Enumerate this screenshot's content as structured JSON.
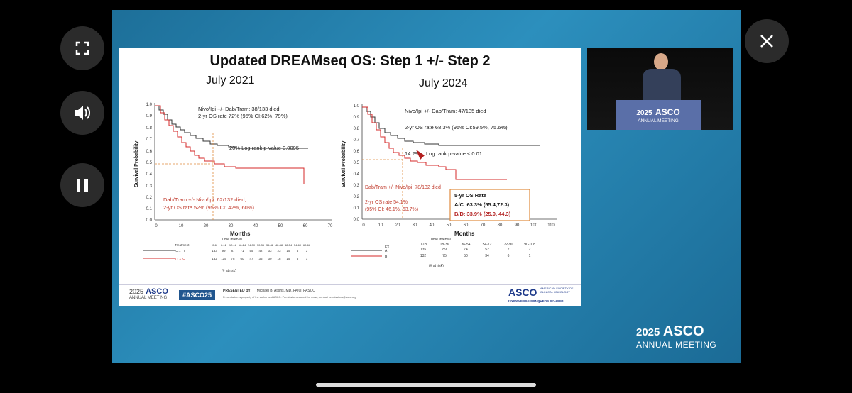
{
  "slide": {
    "title": "Updated DREAMseq OS: Step 1 +/- Step 2",
    "left_subtitle": "July 2021",
    "right_subtitle": "July 2024",
    "left_annot_black_1": "Nivo/Ipi +/- Dab/Tram: 38/133 died,",
    "left_annot_black_2": "2-yr OS rate 72% (95% CI:62%, 79%)",
    "left_logrank": "20% Log rank p-value 0.0095",
    "left_annot_red_1": "Dab/Tram +/- Nivo/Ipi: 62/132 died,",
    "left_annot_red_2": "2-yr OS rate 52% (95% CI: 42%, 60%)",
    "y_axis_label": "Survival Probability",
    "x_axis_label": "Months",
    "time_interval": "Time Interval",
    "at_risk": "(# at risk)",
    "left_treatment_header": "Treatment",
    "left_intervals": [
      "0-6",
      "6-12",
      "12-18",
      "18-24",
      "24-30",
      "30-36",
      "36-42",
      "42-48",
      "48-54",
      "54-60",
      "60-66"
    ],
    "left_row_black_label": "IO→TT",
    "left_row_black": [
      "133",
      "99",
      "87",
      "71",
      "55",
      "42",
      "33",
      "23",
      "15",
      "6",
      "3"
    ],
    "left_row_red_label": "TT→IO",
    "left_row_red": [
      "132",
      "115",
      "78",
      "60",
      "47",
      "35",
      "30",
      "18",
      "15",
      "6",
      "1"
    ],
    "left_x_ticks": [
      "0",
      "10",
      "20",
      "30",
      "40",
      "50",
      "60",
      "70"
    ],
    "y_ticks": [
      "0.0",
      "0.1",
      "0.2",
      "0.3",
      "0.4",
      "0.5",
      "0.6",
      "0.7",
      "0.8",
      "0.9",
      "1.0"
    ],
    "right_annot_black_1": "Nivo/Ipi +/- Dab/Tram: 47/135 died",
    "right_annot_black_2": "2-yr OS rate 68.3% (95% CI:59.5%, 75.6%)",
    "right_diff": "14.2%",
    "right_logrank": "Log rank p-value < 0.01",
    "right_annot_red_1": "Dab/Tram +/- Nivo/Ipi: 78/132 died",
    "right_annot_red_2": "2-yr OS rate 54.1%",
    "right_annot_red_3": "(95% CI: 46.1%, 63.7%)",
    "box_title": "5-yr OS Rate",
    "box_ac": "A/C: 63.3% (55.4,72.3)",
    "box_bd": "B/D: 33.9% (25.9, 44.3)",
    "right_x_ticks": [
      "0",
      "10",
      "20",
      "30",
      "40",
      "50",
      "60",
      "70",
      "80",
      "90",
      "100",
      "110"
    ],
    "right_fx_label": "FX",
    "right_intervals": [
      "0-18",
      "18-36",
      "36-54",
      "54-72",
      "72-90",
      "90-108"
    ],
    "right_row_a_label": "A",
    "right_row_a": [
      "135",
      "89",
      "74",
      "52",
      "2",
      "2"
    ],
    "right_row_b_label": "B",
    "right_row_b": [
      "132",
      "75",
      "50",
      "34",
      "6",
      "1"
    ],
    "footer_brand_year": "2025",
    "footer_brand": "ASCO",
    "footer_brand_sub": "ANNUAL MEETING",
    "hashtag": "#ASCO25",
    "presented_by_label": "PRESENTED BY:",
    "presenter": "Michael B. Atkins, MD, FAIO, FASCO",
    "disclaimer": "Presentation is property of the author and ASCO. Permission required for reuse; contact permissions@asco.org",
    "asco_logo": "ASCO",
    "asco_logo_sub1": "AMERICAN SOCIETY OF",
    "asco_logo_sub2": "CLINICAL ONCOLOGY",
    "asco_tagline": "KNOWLEDGE CONQUERS CANCER"
  },
  "speaker_banner": {
    "year": "2025",
    "brand": "ASCO",
    "sub": "ANNUAL MEETING"
  },
  "stage_brand": {
    "year": "2025",
    "brand": "ASCO",
    "sub": "ANNUAL MEETING"
  },
  "controls": {
    "fullscreen": "fullscreen-icon",
    "volume": "volume-icon",
    "pause": "pause-icon",
    "close": "close-icon"
  },
  "colors": {
    "black_curve": "#333333",
    "red_curve": "#d42a2a",
    "stage_bg": "#2a86b5",
    "box_border": "#e08a3c"
  }
}
